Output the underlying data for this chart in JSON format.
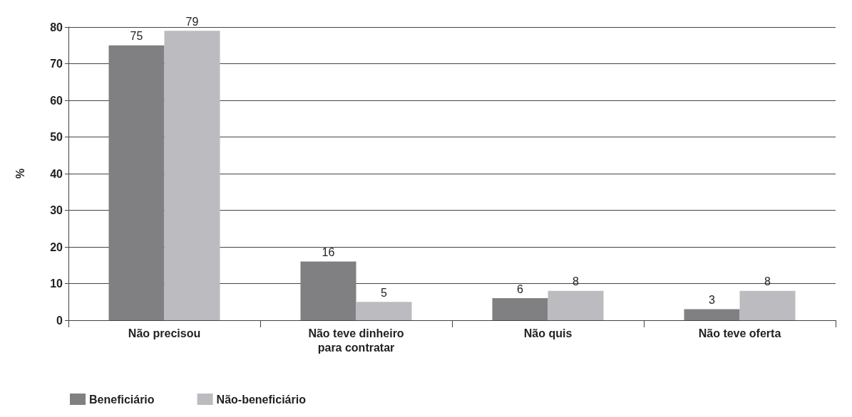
{
  "chart_data": {
    "type": "bar",
    "ylabel": "%",
    "categories": [
      "Não precisou",
      "Não teve dinheiro\npara contratar",
      "Não quis",
      "Não teve oferta"
    ],
    "series": [
      {
        "name": "Beneficiário",
        "color": "#808083",
        "values": [
          75,
          16,
          6,
          3
        ]
      },
      {
        "name": "Não-beneficiário",
        "color": "#bcbcc0",
        "values": [
          79,
          5,
          8,
          8
        ]
      }
    ],
    "ylim": [
      0,
      80
    ],
    "yticks": [
      0,
      10,
      20,
      30,
      40,
      50,
      60,
      70,
      80
    ],
    "grid": "y",
    "legend": "bottom left",
    "data_labels": true
  }
}
